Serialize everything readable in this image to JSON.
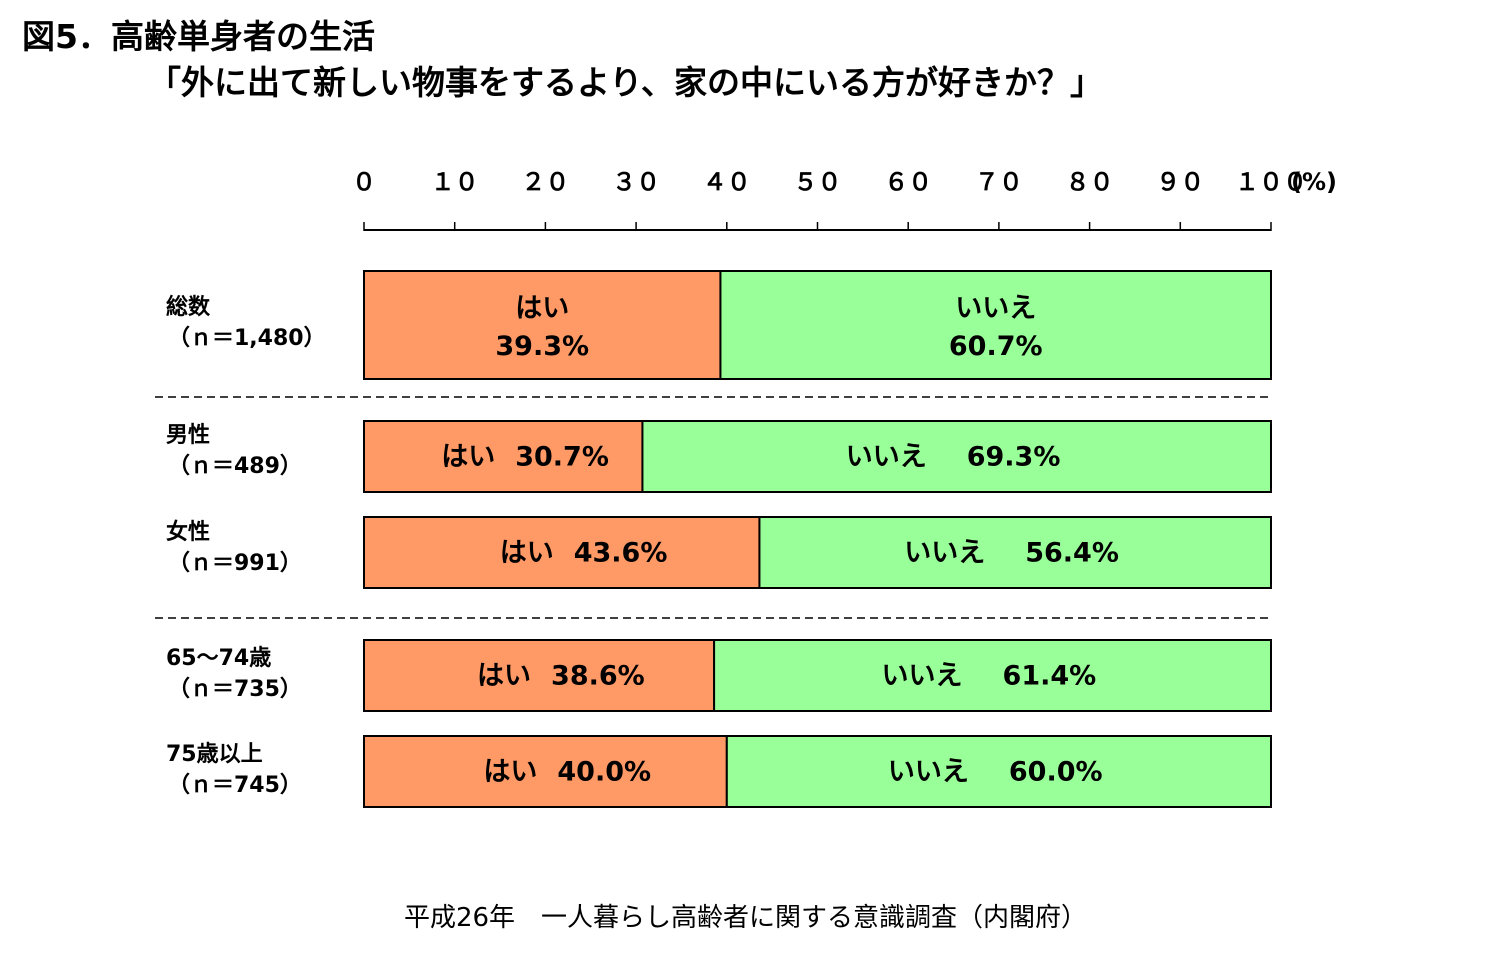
{
  "title_line1": "図5．高齢単身者の生活",
  "title_line2": "「外に出て新しい物事をするより、家の中にいる方が好きか？」",
  "source": "平成26年　一人暮らし高齢者に関する意識調査（内閣府）",
  "colors": {
    "yes": "#FF9966",
    "no": "#99FF99",
    "border": "#000000"
  },
  "chart_data": {
    "type": "bar",
    "orientation": "horizontal",
    "stacked": true,
    "xlim": [
      0,
      100
    ],
    "x_tick_labels": [
      "０",
      "１０",
      "２０",
      "３０",
      "４０",
      "５０",
      "６０",
      "７０",
      "８０",
      "９０",
      "１００",
      "(%)"
    ],
    "categories": [
      {
        "label": "総数",
        "n": "（ｎ＝1,480）"
      },
      {
        "label": "男性",
        "n": "（ｎ＝489）"
      },
      {
        "label": "女性",
        "n": "（ｎ＝991）"
      },
      {
        "label": "65～74歳",
        "n": "（ｎ＝735）"
      },
      {
        "label": "75歳以上",
        "n": "（ｎ＝745）"
      }
    ],
    "series": [
      {
        "name": "はい",
        "values": [
          39.3,
          30.7,
          43.6,
          38.6,
          40.0
        ],
        "labels": [
          "39.3%",
          "30.7%",
          "43.6%",
          "38.6%",
          "40.0%"
        ]
      },
      {
        "name": "いいえ",
        "values": [
          60.7,
          69.3,
          56.4,
          61.4,
          60.0
        ],
        "labels": [
          "60.7%",
          "69.3%",
          "56.4%",
          "61.4%",
          "60.0%"
        ]
      }
    ],
    "grid": false,
    "legend": "none (labels inside bars)"
  }
}
